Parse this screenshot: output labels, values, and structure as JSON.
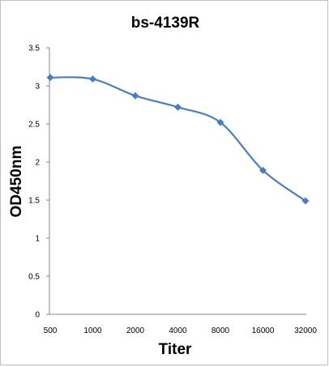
{
  "chart_data": {
    "type": "line",
    "title": "bs-4139R",
    "xlabel": "Titer",
    "ylabel": "OD450nm",
    "categories": [
      "500",
      "1000",
      "2000",
      "4000",
      "8000",
      "16000",
      "32000"
    ],
    "series": [
      {
        "values": [
          3.11,
          3.09,
          2.87,
          2.72,
          2.52,
          1.89,
          1.49
        ]
      }
    ],
    "ylim": [
      0,
      3.5
    ],
    "yticks": [
      "0",
      "0.5",
      "1",
      "1.5",
      "2",
      "2.5",
      "3",
      "3.5"
    ],
    "grid": false,
    "legend": "none",
    "smooth": true,
    "marker": "diamond",
    "line_color": "#4a7ebb"
  }
}
